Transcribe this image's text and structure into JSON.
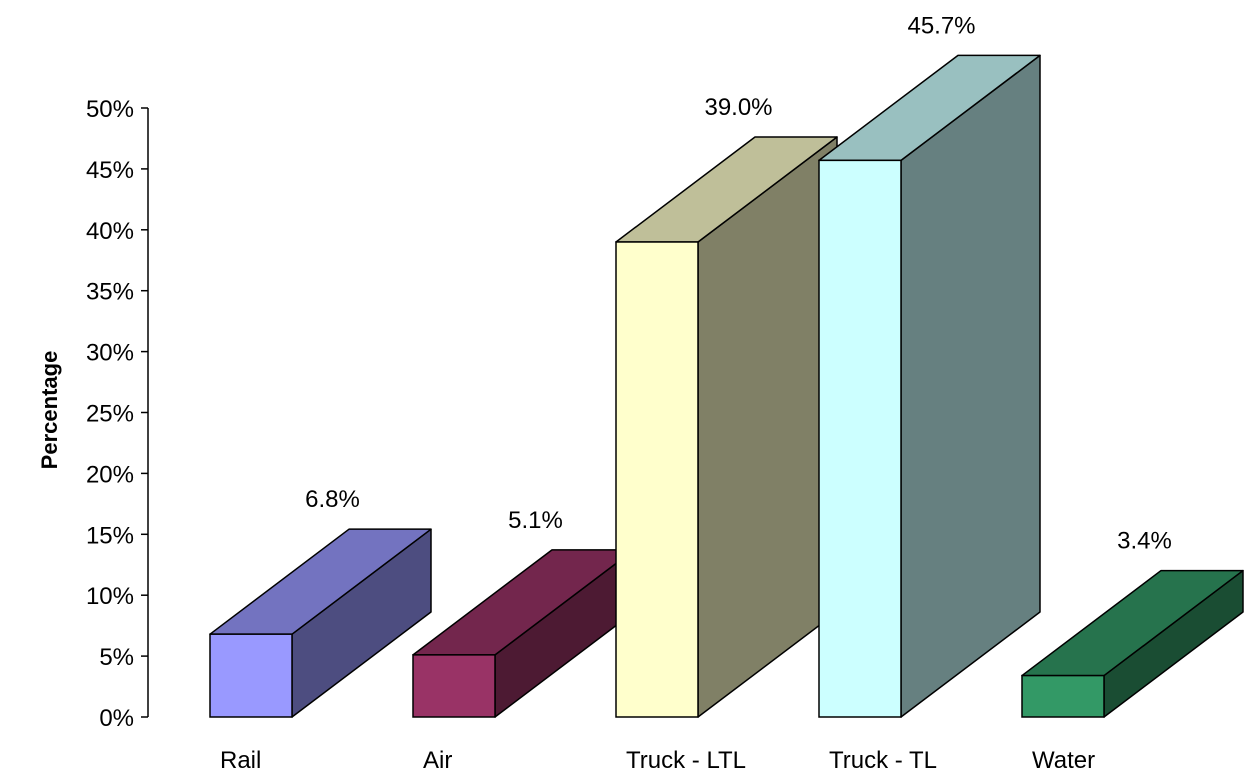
{
  "chart_data": {
    "type": "bar",
    "style": "3d",
    "ylabel": "Percentage",
    "xlabel": "",
    "title": "",
    "ylim": [
      0,
      50
    ],
    "yticks": [
      0,
      5,
      10,
      15,
      20,
      25,
      30,
      35,
      40,
      45,
      50
    ],
    "ytick_labels": [
      "0%",
      "5%",
      "10%",
      "15%",
      "20%",
      "25%",
      "30%",
      "35%",
      "40%",
      "45%",
      "50%"
    ],
    "categories": [
      "Rail",
      "Air",
      "Truck - LTL",
      "Truck - TL",
      "Water"
    ],
    "values": [
      6.8,
      5.1,
      39.0,
      45.7,
      3.4
    ],
    "data_labels": [
      "6.8%",
      "5.1%",
      "39.0%",
      "45.7%",
      "3.4%"
    ],
    "colors": [
      {
        "front": "#9999ff",
        "top": "#7373c0",
        "side": "#4d4d80"
      },
      {
        "front": "#993366",
        "top": "#73264d",
        "side": "#4d1a33"
      },
      {
        "front": "#ffffcc",
        "top": "#bfbf99",
        "side": "#808066"
      },
      {
        "front": "#ccffff",
        "top": "#99c0c0",
        "side": "#668080"
      },
      {
        "front": "#339966",
        "top": "#26734d",
        "side": "#1a4d33"
      }
    ],
    "grid": false,
    "legend": "none"
  }
}
